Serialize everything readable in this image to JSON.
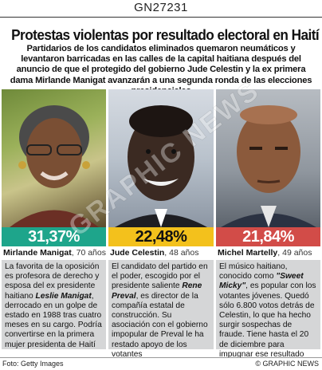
{
  "code": "GN27231",
  "title": "Protestas violentas por resultado electoral en Haití",
  "intro": "Partidarios de los candidatos eliminados quemaron neumáticos y levantaron barricadas en las calles de la capital haitiana después del anuncio de que el protegido del gobierno Jude Celestin y la ex primera dama Mirlande Manigat avanzarán a una segunda ronda de las elecciones presidenciales",
  "candidates": [
    {
      "percent": "31,37%",
      "name": "Mirlande Manigat",
      "age": ", 70 años",
      "color": "#1ea58b",
      "desc": [
        {
          "t": "La favorita de la oposición es profesora de derecho y esposa del ex presidente haitiano "
        },
        {
          "t": "Leslie Manigat",
          "em": true
        },
        {
          "t": ", derrocado en un golpe de estado en 1988 tras cuatro meses en su cargo. Podría convertirse en la primera mujer presidenta de Haití"
        }
      ]
    },
    {
      "percent": "22,48%",
      "name": "Jude Celestin",
      "age": ", 48 años",
      "color": "#f3c11c",
      "desc": [
        {
          "t": "El candidato del partido en el poder, escogido por el presidente saliente "
        },
        {
          "t": "Rene Preval",
          "em": true
        },
        {
          "t": ", es director de la compañía estatal de construcción. Su asociación con el gobierno impopular de Preval le ha restado apoyo de los votantes"
        }
      ]
    },
    {
      "percent": "21,84%",
      "name": "Michel Martelly",
      "age": ", 49 años",
      "color": "#d24c48",
      "desc": [
        {
          "t": "El músico haitiano, conocido como "
        },
        {
          "t": "\"Sweet Micky\"",
          "em": true
        },
        {
          "t": ", es popular con los votantes jóvenes. Quedó sólo 6.800 votos detrás de Celestin, lo que ha hecho surgir sospechas de fraude. Tiene hasta el 20 de diciembre para impugnar ese resultado"
        }
      ]
    }
  ],
  "footer": {
    "credit": "Foto: Getty Images",
    "brand": "© GRAPHIC NEWS"
  },
  "watermark": "GRAPHIC NEWS"
}
